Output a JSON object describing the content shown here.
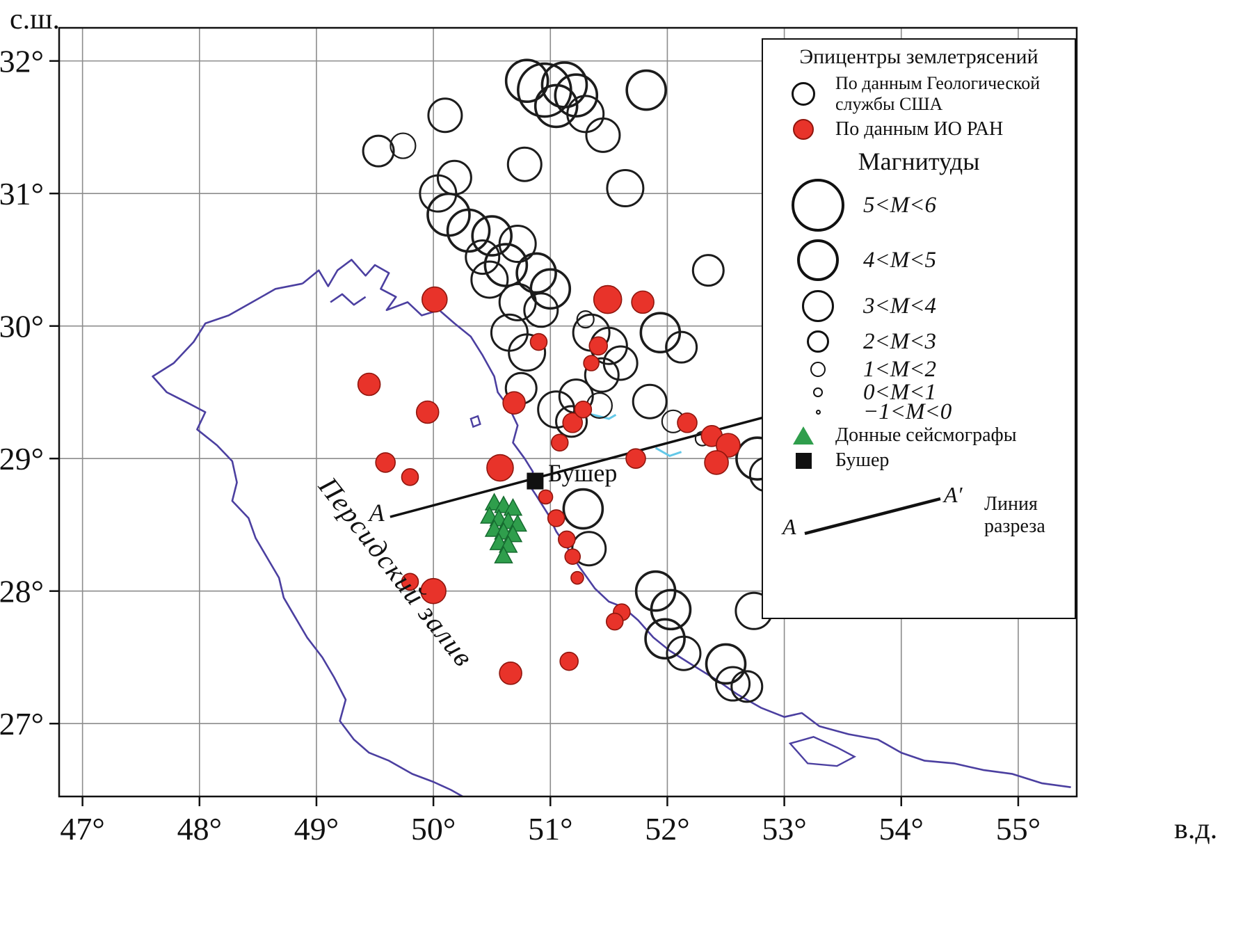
{
  "figure": {
    "y_axis_unit": "с.ш.",
    "x_axis_unit": "в.д.",
    "x_ticks": [
      "47°",
      "48°",
      "49°",
      "50°",
      "51°",
      "52°",
      "53°",
      "54°",
      "55°"
    ],
    "y_ticks": [
      "32°",
      "31°",
      "30°",
      "29°",
      "28°",
      "27°"
    ]
  },
  "map": {
    "lon_min": 46.8,
    "lon_max": 55.5,
    "lat_min": 26.45,
    "lat_max": 32.25,
    "grid_lons": [
      47,
      48,
      49,
      50,
      51,
      52,
      53,
      54,
      55
    ],
    "grid_lats": [
      32,
      31,
      30,
      29,
      28,
      27
    ],
    "labels": {
      "gulf": "Персидский залив",
      "bushehr": "Бушер",
      "section_a": "A"
    },
    "colors": {
      "usgs_stroke": "#1c1c1c",
      "ioran_fill": "#e8332a",
      "ioran_stroke": "#8f150d",
      "seismograph_fill": "#2f9e4c",
      "seismograph_stroke": "#156a2f",
      "bushehr_fill": "#101010",
      "coast": "#4b3fa0",
      "grid": "#8c8c8c",
      "frame": "#111111",
      "water_mark": "#63c8e8",
      "section_line": "#111111"
    },
    "section_line": {
      "from": [
        49.63,
        28.56
      ],
      "to": [
        53.12,
        29.38
      ]
    }
  },
  "legend": {
    "title": "Эпицентры землетрясений",
    "usgs_label": "По данным Геологической службы США",
    "ioran_label": "По данным ИО РАН",
    "magnitude_title": "Магнитуды",
    "magnitudes": [
      {
        "label": "5<M<6",
        "r": 38
      },
      {
        "label": "4<M<5",
        "r": 30
      },
      {
        "label": "3<M<4",
        "r": 23
      },
      {
        "label": "2<M<3",
        "r": 16
      },
      {
        "label": "1<M<2",
        "r": 11
      },
      {
        "label": "0<M<1",
        "r": 7
      },
      {
        "label": "−1<M<0",
        "r": 3.5
      }
    ],
    "seismograph_label": "Донные сейсмографы",
    "bushehr_label": "Бушер",
    "section_a": "A",
    "section_a_prime": "A′",
    "section_label": "Линия разреза"
  },
  "chart_data": {
    "type": "scatter",
    "title": "Эпицентры землетрясений",
    "x_range": [
      46.8,
      55.5
    ],
    "y_range": [
      26.45,
      32.25
    ],
    "series": [
      {
        "name": "По данным Геологической службы США",
        "marker": "open-circle",
        "points": [
          [
            50.95,
            31.78,
            38
          ],
          [
            51.12,
            31.82,
            32
          ],
          [
            51.22,
            31.74,
            30
          ],
          [
            51.05,
            31.66,
            30
          ],
          [
            50.8,
            31.85,
            30
          ],
          [
            51.3,
            31.6,
            26
          ],
          [
            51.45,
            31.44,
            24
          ],
          [
            51.82,
            31.78,
            28
          ],
          [
            50.1,
            31.59,
            24
          ],
          [
            49.53,
            31.32,
            22
          ],
          [
            49.74,
            31.36,
            18
          ],
          [
            50.04,
            31.0,
            26
          ],
          [
            50.18,
            31.12,
            24
          ],
          [
            50.13,
            30.84,
            30
          ],
          [
            50.3,
            30.72,
            30
          ],
          [
            50.5,
            30.68,
            28
          ],
          [
            50.72,
            30.62,
            26
          ],
          [
            50.42,
            30.52,
            24
          ],
          [
            50.62,
            30.46,
            30
          ],
          [
            50.48,
            30.35,
            26
          ],
          [
            50.88,
            30.4,
            28
          ],
          [
            50.72,
            30.18,
            26
          ],
          [
            51.0,
            30.28,
            28
          ],
          [
            50.92,
            30.12,
            24
          ],
          [
            50.78,
            31.22,
            24
          ],
          [
            50.65,
            29.95,
            26
          ],
          [
            50.8,
            29.8,
            26
          ],
          [
            50.75,
            29.53,
            22
          ],
          [
            51.05,
            29.37,
            26
          ],
          [
            51.22,
            29.47,
            24
          ],
          [
            51.18,
            29.28,
            22
          ],
          [
            51.35,
            29.95,
            26
          ],
          [
            51.5,
            29.85,
            26
          ],
          [
            51.44,
            29.63,
            24
          ],
          [
            51.42,
            29.4,
            18
          ],
          [
            51.6,
            29.72,
            24
          ],
          [
            51.94,
            29.95,
            28
          ],
          [
            52.12,
            29.84,
            22
          ],
          [
            52.35,
            30.42,
            22
          ],
          [
            51.85,
            29.43,
            24
          ],
          [
            52.05,
            29.28,
            16
          ],
          [
            52.77,
            29.0,
            30
          ],
          [
            52.85,
            28.88,
            24
          ],
          [
            51.28,
            28.62,
            28
          ],
          [
            51.33,
            28.32,
            24
          ],
          [
            51.9,
            28.0,
            28
          ],
          [
            52.03,
            27.86,
            28
          ],
          [
            51.98,
            27.64,
            28
          ],
          [
            52.14,
            27.53,
            24
          ],
          [
            52.5,
            27.45,
            28
          ],
          [
            52.56,
            27.3,
            24
          ],
          [
            52.68,
            27.28,
            22
          ],
          [
            52.74,
            27.85,
            26
          ],
          [
            51.64,
            31.04,
            26
          ],
          [
            52.3,
            29.15,
            10
          ],
          [
            51.3,
            30.05,
            12
          ]
        ]
      },
      {
        "name": "По данным ИО РАН",
        "marker": "red-circle",
        "points": [
          [
            50.01,
            30.2,
            18
          ],
          [
            51.49,
            30.2,
            20
          ],
          [
            51.79,
            30.18,
            16
          ],
          [
            50.9,
            29.88,
            12
          ],
          [
            51.41,
            29.85,
            13
          ],
          [
            51.35,
            29.72,
            11
          ],
          [
            49.45,
            29.56,
            16
          ],
          [
            49.95,
            29.35,
            16
          ],
          [
            50.69,
            29.42,
            16
          ],
          [
            51.19,
            29.27,
            14
          ],
          [
            51.28,
            29.37,
            12
          ],
          [
            51.08,
            29.12,
            12
          ],
          [
            52.17,
            29.27,
            14
          ],
          [
            52.38,
            29.17,
            15
          ],
          [
            52.52,
            29.1,
            17
          ],
          [
            52.42,
            28.97,
            17
          ],
          [
            51.73,
            29.0,
            14
          ],
          [
            49.59,
            28.97,
            14
          ],
          [
            49.8,
            28.86,
            12
          ],
          [
            50.57,
            28.93,
            19
          ],
          [
            50.96,
            28.71,
            10
          ],
          [
            51.05,
            28.55,
            12
          ],
          [
            51.14,
            28.39,
            12
          ],
          [
            51.19,
            28.26,
            11
          ],
          [
            51.23,
            28.1,
            9
          ],
          [
            49.8,
            28.07,
            12
          ],
          [
            50.0,
            28.0,
            18
          ],
          [
            51.61,
            27.84,
            12
          ],
          [
            51.55,
            27.77,
            12
          ],
          [
            51.16,
            27.47,
            13
          ],
          [
            50.66,
            27.38,
            16
          ]
        ]
      },
      {
        "name": "Донные сейсмографы",
        "marker": "green-triangle",
        "points": [
          [
            50.52,
            28.66
          ],
          [
            50.6,
            28.64
          ],
          [
            50.68,
            28.62
          ],
          [
            50.48,
            28.56
          ],
          [
            50.56,
            28.54
          ],
          [
            50.64,
            28.52
          ],
          [
            50.72,
            28.5
          ],
          [
            50.52,
            28.46
          ],
          [
            50.6,
            28.44
          ],
          [
            50.68,
            28.42
          ],
          [
            50.56,
            28.36
          ],
          [
            50.64,
            28.34
          ],
          [
            50.6,
            28.26
          ]
        ]
      },
      {
        "name": "Бушер",
        "marker": "black-square",
        "points": [
          [
            50.87,
            28.83
          ]
        ]
      }
    ]
  },
  "coastline": {
    "open": [
      [
        [
          48.88,
          30.32
        ],
        [
          49.02,
          30.42
        ],
        [
          49.1,
          30.3
        ],
        [
          49.18,
          30.42
        ],
        [
          49.3,
          30.5
        ],
        [
          49.42,
          30.38
        ],
        [
          49.5,
          30.46
        ],
        [
          49.62,
          30.4
        ],
        [
          49.55,
          30.28
        ],
        [
          49.68,
          30.22
        ],
        [
          49.6,
          30.12
        ],
        [
          49.78,
          30.18
        ],
        [
          49.9,
          30.08
        ],
        [
          50.05,
          30.12
        ],
        [
          50.18,
          30.02
        ],
        [
          50.32,
          29.92
        ],
        [
          50.42,
          29.78
        ],
        [
          50.52,
          29.62
        ],
        [
          50.55,
          29.5
        ],
        [
          50.65,
          29.38
        ],
        [
          50.72,
          29.25
        ],
        [
          50.68,
          29.12
        ],
        [
          50.78,
          29.0
        ],
        [
          50.85,
          28.9
        ],
        [
          50.82,
          28.8
        ],
        [
          50.88,
          28.72
        ],
        [
          50.98,
          28.58
        ],
        [
          51.05,
          28.45
        ],
        [
          51.15,
          28.32
        ],
        [
          51.25,
          28.18
        ],
        [
          51.38,
          28.02
        ],
        [
          51.5,
          27.92
        ],
        [
          51.62,
          27.88
        ],
        [
          51.75,
          27.78
        ],
        [
          51.88,
          27.65
        ],
        [
          52.02,
          27.55
        ],
        [
          52.2,
          27.45
        ],
        [
          52.42,
          27.33
        ],
        [
          52.6,
          27.22
        ],
        [
          52.8,
          27.12
        ],
        [
          53.0,
          27.05
        ],
        [
          53.15,
          27.08
        ],
        [
          53.3,
          26.98
        ],
        [
          53.55,
          26.92
        ],
        [
          53.8,
          26.88
        ],
        [
          54.0,
          26.78
        ],
        [
          54.2,
          26.72
        ],
        [
          54.45,
          26.7
        ],
        [
          54.7,
          26.65
        ],
        [
          54.95,
          26.62
        ],
        [
          55.2,
          26.55
        ],
        [
          55.45,
          26.52
        ]
      ],
      [
        [
          48.88,
          30.32
        ],
        [
          48.65,
          30.28
        ],
        [
          48.45,
          30.18
        ],
        [
          48.25,
          30.08
        ],
        [
          48.05,
          30.02
        ],
        [
          47.95,
          29.88
        ],
        [
          47.78,
          29.72
        ],
        [
          47.6,
          29.62
        ],
        [
          47.72,
          29.5
        ],
        [
          47.9,
          29.42
        ],
        [
          48.05,
          29.35
        ],
        [
          47.98,
          29.22
        ],
        [
          48.15,
          29.1
        ],
        [
          48.28,
          28.98
        ],
        [
          48.32,
          28.82
        ],
        [
          48.28,
          28.68
        ],
        [
          48.42,
          28.55
        ],
        [
          48.48,
          28.4
        ],
        [
          48.58,
          28.25
        ],
        [
          48.68,
          28.1
        ],
        [
          48.72,
          27.95
        ],
        [
          48.82,
          27.8
        ],
        [
          48.92,
          27.65
        ],
        [
          49.05,
          27.5
        ],
        [
          49.15,
          27.35
        ],
        [
          49.25,
          27.18
        ],
        [
          49.2,
          27.02
        ],
        [
          49.32,
          26.88
        ],
        [
          49.45,
          26.78
        ],
        [
          49.62,
          26.72
        ],
        [
          49.82,
          26.62
        ],
        [
          50.0,
          26.56
        ],
        [
          50.15,
          26.5
        ],
        [
          50.25,
          26.45
        ]
      ],
      [
        [
          49.12,
          30.18
        ],
        [
          49.22,
          30.24
        ],
        [
          49.32,
          30.16
        ],
        [
          49.42,
          30.22
        ]
      ]
    ],
    "closed": [
      [
        [
          53.05,
          26.85
        ],
        [
          53.25,
          26.9
        ],
        [
          53.45,
          26.82
        ],
        [
          53.6,
          26.75
        ],
        [
          53.45,
          26.68
        ],
        [
          53.2,
          26.7
        ]
      ],
      [
        [
          50.32,
          29.3
        ],
        [
          50.38,
          29.32
        ],
        [
          50.4,
          29.26
        ],
        [
          50.34,
          29.24
        ]
      ]
    ]
  },
  "water_marks": [
    [
      [
        51.32,
        29.34
      ],
      [
        51.5,
        29.3
      ],
      [
        51.56,
        29.33
      ]
    ],
    [
      [
        51.9,
        29.08
      ],
      [
        52.02,
        29.02
      ],
      [
        52.12,
        29.05
      ]
    ]
  ]
}
